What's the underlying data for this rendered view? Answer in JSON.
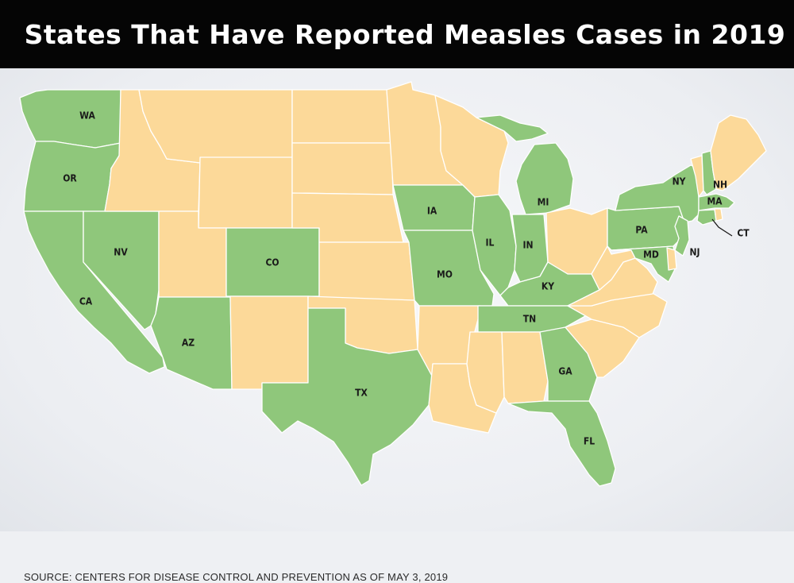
{
  "title": "States That Have Reported Measles Cases in 2019",
  "source": "SOURCE: CENTERS FOR DISEASE CONTROL AND PREVENTION AS OF MAY 3, 2019",
  "colors": {
    "reported": "#8fc77b",
    "not_reported": "#fcd999"
  },
  "states": [
    {
      "id": "WA",
      "label": "WA",
      "reported": true
    },
    {
      "id": "OR",
      "label": "OR",
      "reported": true
    },
    {
      "id": "CA",
      "label": "CA",
      "reported": true
    },
    {
      "id": "NV",
      "label": "NV",
      "reported": true
    },
    {
      "id": "ID",
      "label": "",
      "reported": false
    },
    {
      "id": "MT",
      "label": "",
      "reported": false
    },
    {
      "id": "WY",
      "label": "",
      "reported": false
    },
    {
      "id": "UT",
      "label": "",
      "reported": false
    },
    {
      "id": "AZ",
      "label": "AZ",
      "reported": true
    },
    {
      "id": "CO",
      "label": "CO",
      "reported": true
    },
    {
      "id": "NM",
      "label": "",
      "reported": false
    },
    {
      "id": "ND",
      "label": "",
      "reported": false
    },
    {
      "id": "SD",
      "label": "",
      "reported": false
    },
    {
      "id": "NE",
      "label": "",
      "reported": false
    },
    {
      "id": "KS",
      "label": "",
      "reported": false
    },
    {
      "id": "OK",
      "label": "",
      "reported": false
    },
    {
      "id": "TX",
      "label": "TX",
      "reported": true
    },
    {
      "id": "MN",
      "label": "",
      "reported": false
    },
    {
      "id": "IA",
      "label": "IA",
      "reported": true
    },
    {
      "id": "MO",
      "label": "MO",
      "reported": true
    },
    {
      "id": "AR",
      "label": "",
      "reported": false
    },
    {
      "id": "LA",
      "label": "",
      "reported": false
    },
    {
      "id": "WI",
      "label": "",
      "reported": false
    },
    {
      "id": "IL",
      "label": "IL",
      "reported": true
    },
    {
      "id": "MI",
      "label": "MI",
      "reported": true
    },
    {
      "id": "MI_UP",
      "label": "",
      "reported": true
    },
    {
      "id": "IN",
      "label": "IN",
      "reported": true
    },
    {
      "id": "OH",
      "label": "",
      "reported": false
    },
    {
      "id": "KY",
      "label": "KY",
      "reported": true
    },
    {
      "id": "TN",
      "label": "TN",
      "reported": true
    },
    {
      "id": "MS",
      "label": "",
      "reported": false
    },
    {
      "id": "AL",
      "label": "",
      "reported": false
    },
    {
      "id": "GA",
      "label": "GA",
      "reported": true
    },
    {
      "id": "FL",
      "label": "FL",
      "reported": true
    },
    {
      "id": "SC",
      "label": "",
      "reported": false
    },
    {
      "id": "NC",
      "label": "",
      "reported": false
    },
    {
      "id": "VA",
      "label": "",
      "reported": false
    },
    {
      "id": "WV",
      "label": "",
      "reported": false
    },
    {
      "id": "PA",
      "label": "PA",
      "reported": true
    },
    {
      "id": "NY",
      "label": "NY",
      "reported": true
    },
    {
      "id": "NJ",
      "label": "NJ",
      "reported": true
    },
    {
      "id": "MD",
      "label": "MD",
      "reported": true
    },
    {
      "id": "DE",
      "label": "",
      "reported": false
    },
    {
      "id": "VT",
      "label": "",
      "reported": false
    },
    {
      "id": "NH",
      "label": "NH",
      "reported": true
    },
    {
      "id": "ME",
      "label": "",
      "reported": false
    },
    {
      "id": "MA",
      "label": "MA",
      "reported": true
    },
    {
      "id": "CT",
      "label": "CT",
      "reported": true
    },
    {
      "id": "RI",
      "label": "",
      "reported": false
    }
  ]
}
